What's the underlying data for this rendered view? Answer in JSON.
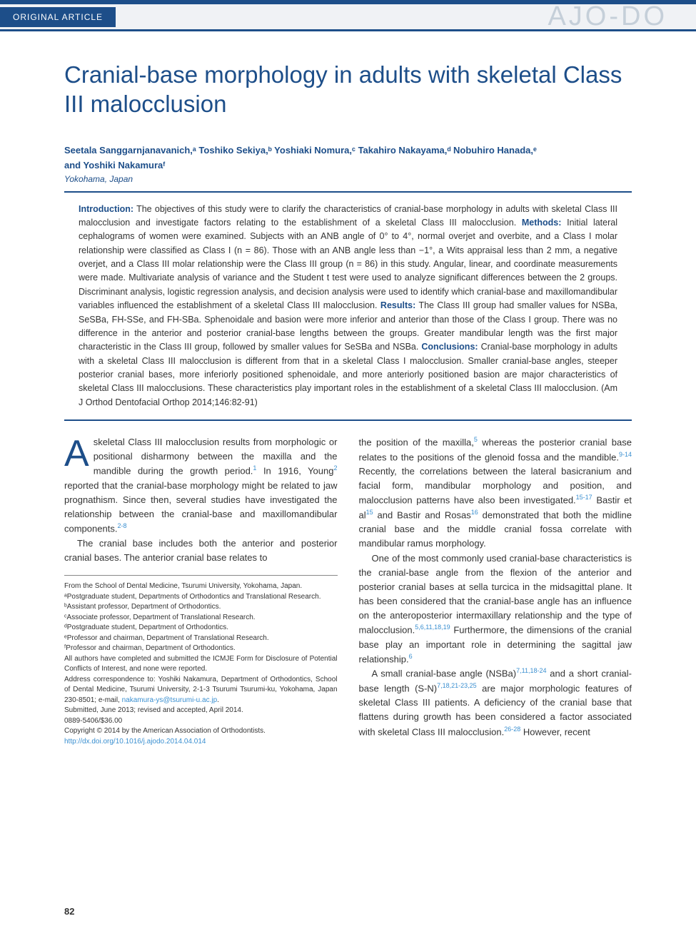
{
  "header": {
    "category": "ORIGINAL ARTICLE",
    "journal_brand": "AJO-DO"
  },
  "title": "Cranial-base morphology in adults with skeletal Class III malocclusion",
  "authors_line1": "Seetala Sanggarnjanavanich,ᵃ Toshiko Sekiya,ᵇ Yoshiaki Nomura,ᶜ Takahiro Nakayama,ᵈ Nobuhiro Hanada,ᵉ",
  "authors_line2": "and Yoshiki Nakamuraᶠ",
  "affiliation_city": "Yokohama, Japan",
  "abstract": {
    "intro_label": "Introduction:",
    "intro_text": " The objectives of this study were to clarify the characteristics of cranial-base morphology in adults with skeletal Class III malocclusion and investigate factors relating to the establishment of a skeletal Class III malocclusion. ",
    "methods_label": "Methods:",
    "methods_text": " Initial lateral cephalograms of women were examined. Subjects with an ANB angle of 0° to 4°, normal overjet and overbite, and a Class I molar relationship were classified as Class I (n = 86). Those with an ANB angle less than −1°, a Wits appraisal less than 2 mm, a negative overjet, and a Class III molar relationship were the Class III group (n = 86) in this study. Angular, linear, and coordinate measurements were made. Multivariate analysis of variance and the Student t test were used to analyze significant differences between the 2 groups. Discriminant analysis, logistic regression analysis, and decision analysis were used to identify which cranial-base and maxillomandibular variables influenced the establishment of a skeletal Class III malocclusion. ",
    "results_label": "Results:",
    "results_text": " The Class III group had smaller values for NSBa, SeSBa, FH-SSe, and FH-SBa. Sphenoidale and basion were more inferior and anterior than those of the Class I group. There was no difference in the anterior and posterior cranial-base lengths between the groups. Greater mandibular length was the first major characteristic in the Class III group, followed by smaller values for SeSBa and NSBa. ",
    "conclusions_label": "Conclusions:",
    "conclusions_text": " Cranial-base morphology in adults with a skeletal Class III malocclusion is different from that in a skeletal Class I malocclusion. Smaller cranial-base angles, steeper posterior cranial bases, more inferiorly positioned sphenoidale, and more anteriorly positioned basion are major characteristics of skeletal Class III malocclusions. These characteristics play important roles in the establishment of a skeletal Class III malocclusion. (Am J Orthod Dentofacial Orthop 2014;146:82-91)"
  },
  "body": {
    "col1": {
      "p1_dropcap": "A",
      "p1": "skeletal Class III malocclusion results from morphologic or positional disharmony between the maxilla and the mandible during the growth period.",
      "p1_ref1": "1",
      "p1_mid": " In 1916, Young",
      "p1_ref2": "2",
      "p1_tail": " reported that the cranial-base morphology might be related to jaw prognathism. Since then, several studies have investigated the relationship between the cranial-base and maxillomandibular components.",
      "p1_ref3": "2-8",
      "p2": "The cranial base includes both the anterior and posterior cranial bases. The anterior cranial base relates to"
    },
    "col2": {
      "p1": "the position of the maxilla,",
      "p1_ref1": "5",
      "p1_mid": " whereas the posterior cranial base relates to the positions of the glenoid fossa and the mandible.",
      "p1_ref2": "9-14",
      "p1_tail": " Recently, the correlations between the lateral basicranium and facial form, mandibular morphology and position, and malocclusion patterns have also been investigated.",
      "p1_ref3": "15-17",
      "p1_tail2": " Bastir et al",
      "p1_ref4": "15",
      "p1_tail3": " and Bastir and Rosas",
      "p1_ref5": "16",
      "p1_tail4": " demonstrated that both the midline cranial base and the middle cranial fossa correlate with mandibular ramus morphology.",
      "p2": "One of the most commonly used cranial-base characteristics is the cranial-base angle from the flexion of the anterior and posterior cranial bases at sella turcica in the midsagittal plane. It has been considered that the cranial-base angle has an influence on the anteroposterior intermaxillary relationship and the type of malocclusion.",
      "p2_ref1": "5,6,11,18,19",
      "p2_tail": " Furthermore, the dimensions of the cranial base play an important role in determining the sagittal jaw relationship.",
      "p2_ref2": "6",
      "p3": "A small cranial-base angle (NSBa)",
      "p3_ref1": "7,11,18-24",
      "p3_mid": " and a short cranial-base length (S-N)",
      "p3_ref2": "7,18,21-23,25",
      "p3_tail": " are major morphologic features of skeletal Class III patients. A deficiency of the cranial base that flattens during growth has been considered a factor associated with skeletal Class III malocclusion.",
      "p3_ref3": "26-28",
      "p3_tail2": " However, recent"
    }
  },
  "footnotes": {
    "l1": "From the School of Dental Medicine, Tsurumi University, Yokohama, Japan.",
    "l2": "ᵃPostgraduate student, Departments of Orthodontics and Translational Research.",
    "l3": "ᵇAssistant professor, Department of Orthodontics.",
    "l4": "ᶜAssociate professor, Department of Translational Research.",
    "l5": "ᵈPostgraduate student, Department of Orthodontics.",
    "l6": "ᵉProfessor and chairman, Department of Translational Research.",
    "l7": "ᶠProfessor and chairman, Department of Orthodontics.",
    "l8": "All authors have completed and submitted the ICMJE Form for Disclosure of Potential Conflicts of Interest, and none were reported.",
    "l9a": "Address correspondence to: Yoshiki Nakamura, Department of Orthodontics, School of Dental Medicine, Tsurumi University, 2-1-3 Tsurumi Tsurumi-ku, Yokohama, Japan 230-8501; e-mail, ",
    "l9_email": "nakamura-ys@tsurumi-u.ac.jp",
    "l9b": ".",
    "l10": "Submitted, June 2013; revised and accepted, April 2014.",
    "l11": "0889-5406/$36.00",
    "l12": "Copyright © 2014 by the American Association of Orthodontists.",
    "l13": "http://dx.doi.org/10.1016/j.ajodo.2014.04.014"
  },
  "page_number": "82",
  "colors": {
    "brand_blue": "#1d4e89",
    "light_blue": "#3a8fd0",
    "washed_blue": "#c5cfd9",
    "header_bg": "#f0f2f5",
    "text": "#333333"
  }
}
